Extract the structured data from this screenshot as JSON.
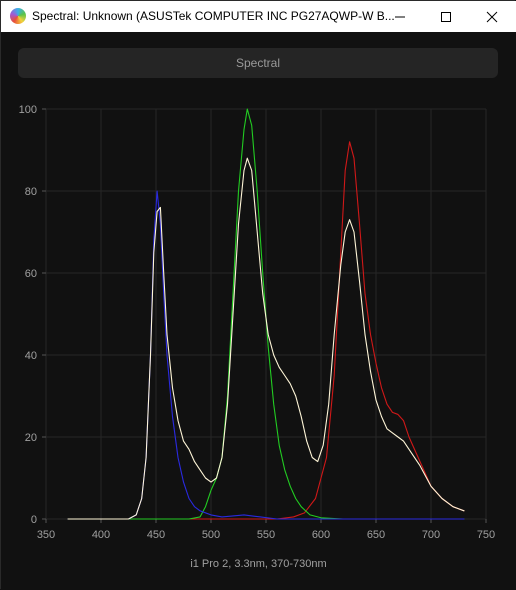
{
  "window": {
    "title": "Spectral: Unknown (ASUSTek COMPUTER INC PG27AQWP-W B...",
    "minimize_icon": "minimize-icon",
    "maximize_icon": "maximize-icon",
    "close_icon": "close-icon"
  },
  "tab": {
    "label": "Spectral"
  },
  "footer": {
    "text": "i1 Pro 2, 3.3nm, 370-730nm"
  },
  "chart_data": {
    "type": "line",
    "title": "",
    "xlabel": "",
    "ylabel": "",
    "xlim": [
      350,
      750
    ],
    "ylim": [
      0,
      100
    ],
    "x_ticks": [
      350,
      400,
      450,
      500,
      550,
      600,
      650,
      700,
      750
    ],
    "y_ticks": [
      0,
      20,
      40,
      60,
      80,
      100
    ],
    "grid": true,
    "legend": "none",
    "series": [
      {
        "color": "#d01818",
        "points": [
          [
            370,
            0
          ],
          [
            560,
            0
          ],
          [
            575,
            0.5
          ],
          [
            585,
            1.5
          ],
          [
            595,
            5
          ],
          [
            605,
            15
          ],
          [
            612,
            35
          ],
          [
            618,
            65
          ],
          [
            622,
            85
          ],
          [
            626,
            92
          ],
          [
            630,
            88
          ],
          [
            635,
            72
          ],
          [
            640,
            55
          ],
          [
            645,
            45
          ],
          [
            650,
            38
          ],
          [
            655,
            32
          ],
          [
            660,
            28
          ],
          [
            665,
            26
          ],
          [
            670,
            25.5
          ],
          [
            675,
            24
          ],
          [
            680,
            20
          ],
          [
            690,
            14
          ],
          [
            700,
            8
          ],
          [
            710,
            5
          ],
          [
            720,
            3
          ],
          [
            730,
            2
          ]
        ]
      },
      {
        "color": "#22cc22",
        "points": [
          [
            370,
            0
          ],
          [
            480,
            0
          ],
          [
            490,
            0.5
          ],
          [
            495,
            3
          ],
          [
            500,
            7
          ],
          [
            505,
            10
          ],
          [
            510,
            15
          ],
          [
            515,
            30
          ],
          [
            520,
            55
          ],
          [
            525,
            80
          ],
          [
            530,
            95
          ],
          [
            533,
            100
          ],
          [
            537,
            96
          ],
          [
            542,
            80
          ],
          [
            547,
            60
          ],
          [
            552,
            42
          ],
          [
            557,
            28
          ],
          [
            562,
            18
          ],
          [
            567,
            12
          ],
          [
            572,
            8
          ],
          [
            577,
            5
          ],
          [
            582,
            3
          ],
          [
            590,
            1
          ],
          [
            600,
            0.3
          ],
          [
            620,
            0
          ],
          [
            730,
            0
          ]
        ]
      },
      {
        "color": "#2a2ae0",
        "points": [
          [
            370,
            0
          ],
          [
            425,
            0
          ],
          [
            432,
            1
          ],
          [
            437,
            5
          ],
          [
            441,
            15
          ],
          [
            445,
            40
          ],
          [
            448,
            68
          ],
          [
            451,
            80
          ],
          [
            454,
            72
          ],
          [
            457,
            55
          ],
          [
            460,
            40
          ],
          [
            465,
            25
          ],
          [
            470,
            15
          ],
          [
            475,
            9
          ],
          [
            480,
            5
          ],
          [
            485,
            3
          ],
          [
            490,
            2
          ],
          [
            500,
            1
          ],
          [
            510,
            0.5
          ],
          [
            530,
            1
          ],
          [
            545,
            0.5
          ],
          [
            560,
            0
          ],
          [
            730,
            0
          ]
        ]
      },
      {
        "color": "#fff6d8",
        "points": [
          [
            370,
            0
          ],
          [
            425,
            0
          ],
          [
            432,
            1
          ],
          [
            437,
            5
          ],
          [
            441,
            15
          ],
          [
            445,
            40
          ],
          [
            448,
            65
          ],
          [
            451,
            75
          ],
          [
            454,
            76
          ],
          [
            457,
            60
          ],
          [
            460,
            45
          ],
          [
            465,
            32
          ],
          [
            470,
            24
          ],
          [
            475,
            19
          ],
          [
            480,
            17
          ],
          [
            485,
            14
          ],
          [
            490,
            12
          ],
          [
            495,
            10
          ],
          [
            500,
            9
          ],
          [
            505,
            10
          ],
          [
            510,
            15
          ],
          [
            515,
            28
          ],
          [
            520,
            50
          ],
          [
            525,
            72
          ],
          [
            530,
            85
          ],
          [
            533,
            88
          ],
          [
            537,
            85
          ],
          [
            542,
            70
          ],
          [
            547,
            55
          ],
          [
            552,
            45
          ],
          [
            557,
            40
          ],
          [
            562,
            37
          ],
          [
            567,
            35
          ],
          [
            572,
            33
          ],
          [
            577,
            30
          ],
          [
            582,
            25
          ],
          [
            587,
            19
          ],
          [
            592,
            15
          ],
          [
            597,
            14
          ],
          [
            602,
            18
          ],
          [
            607,
            28
          ],
          [
            612,
            45
          ],
          [
            618,
            62
          ],
          [
            622,
            70
          ],
          [
            626,
            73
          ],
          [
            630,
            70
          ],
          [
            635,
            58
          ],
          [
            640,
            45
          ],
          [
            645,
            36
          ],
          [
            650,
            29
          ],
          [
            655,
            25
          ],
          [
            660,
            22
          ],
          [
            665,
            21
          ],
          [
            670,
            20
          ],
          [
            675,
            19
          ],
          [
            680,
            17
          ],
          [
            690,
            13
          ],
          [
            700,
            8
          ],
          [
            710,
            5
          ],
          [
            720,
            3
          ],
          [
            730,
            2
          ]
        ]
      }
    ]
  }
}
